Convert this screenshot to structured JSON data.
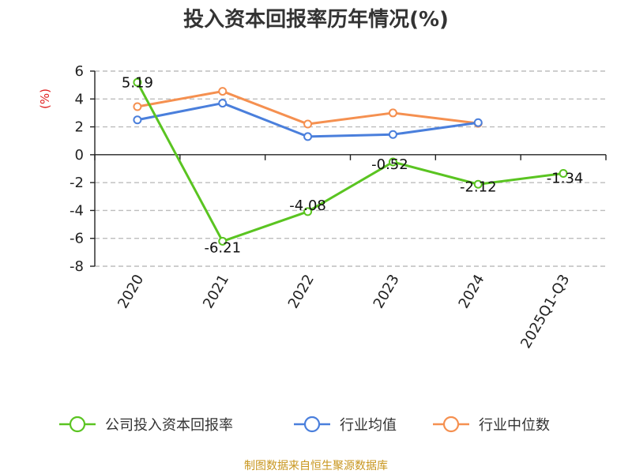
{
  "chart_data": {
    "type": "line",
    "title": "投入资本回报率历年情况(%)",
    "ylabel": "(%)",
    "categories": [
      "2020",
      "2021",
      "2022",
      "2023",
      "2024",
      "2025Q1-Q3"
    ],
    "ylim": [
      -8,
      6
    ],
    "yticks": [
      6,
      4,
      2,
      0,
      -2,
      -4,
      -6,
      -8
    ],
    "grid": true,
    "legend_position": "bottom",
    "series": [
      {
        "name": "公司投入资本回报率",
        "color": "#5ac421",
        "values": [
          5.19,
          -6.21,
          -4.08,
          -0.52,
          -2.12,
          -1.34
        ],
        "labels": [
          "5.19",
          "-6.21",
          "-4.08",
          "-0.52",
          "-2.12",
          "-1.34"
        ]
      },
      {
        "name": "行业均值",
        "color": "#4a7fdc",
        "values": [
          2.5,
          3.7,
          1.3,
          1.45,
          2.3,
          null
        ]
      },
      {
        "name": "行业中位数",
        "color": "#f59050",
        "values": [
          3.45,
          4.55,
          2.2,
          3.0,
          2.25,
          null
        ]
      }
    ]
  },
  "source": "制图数据来自恒生聚源数据库"
}
